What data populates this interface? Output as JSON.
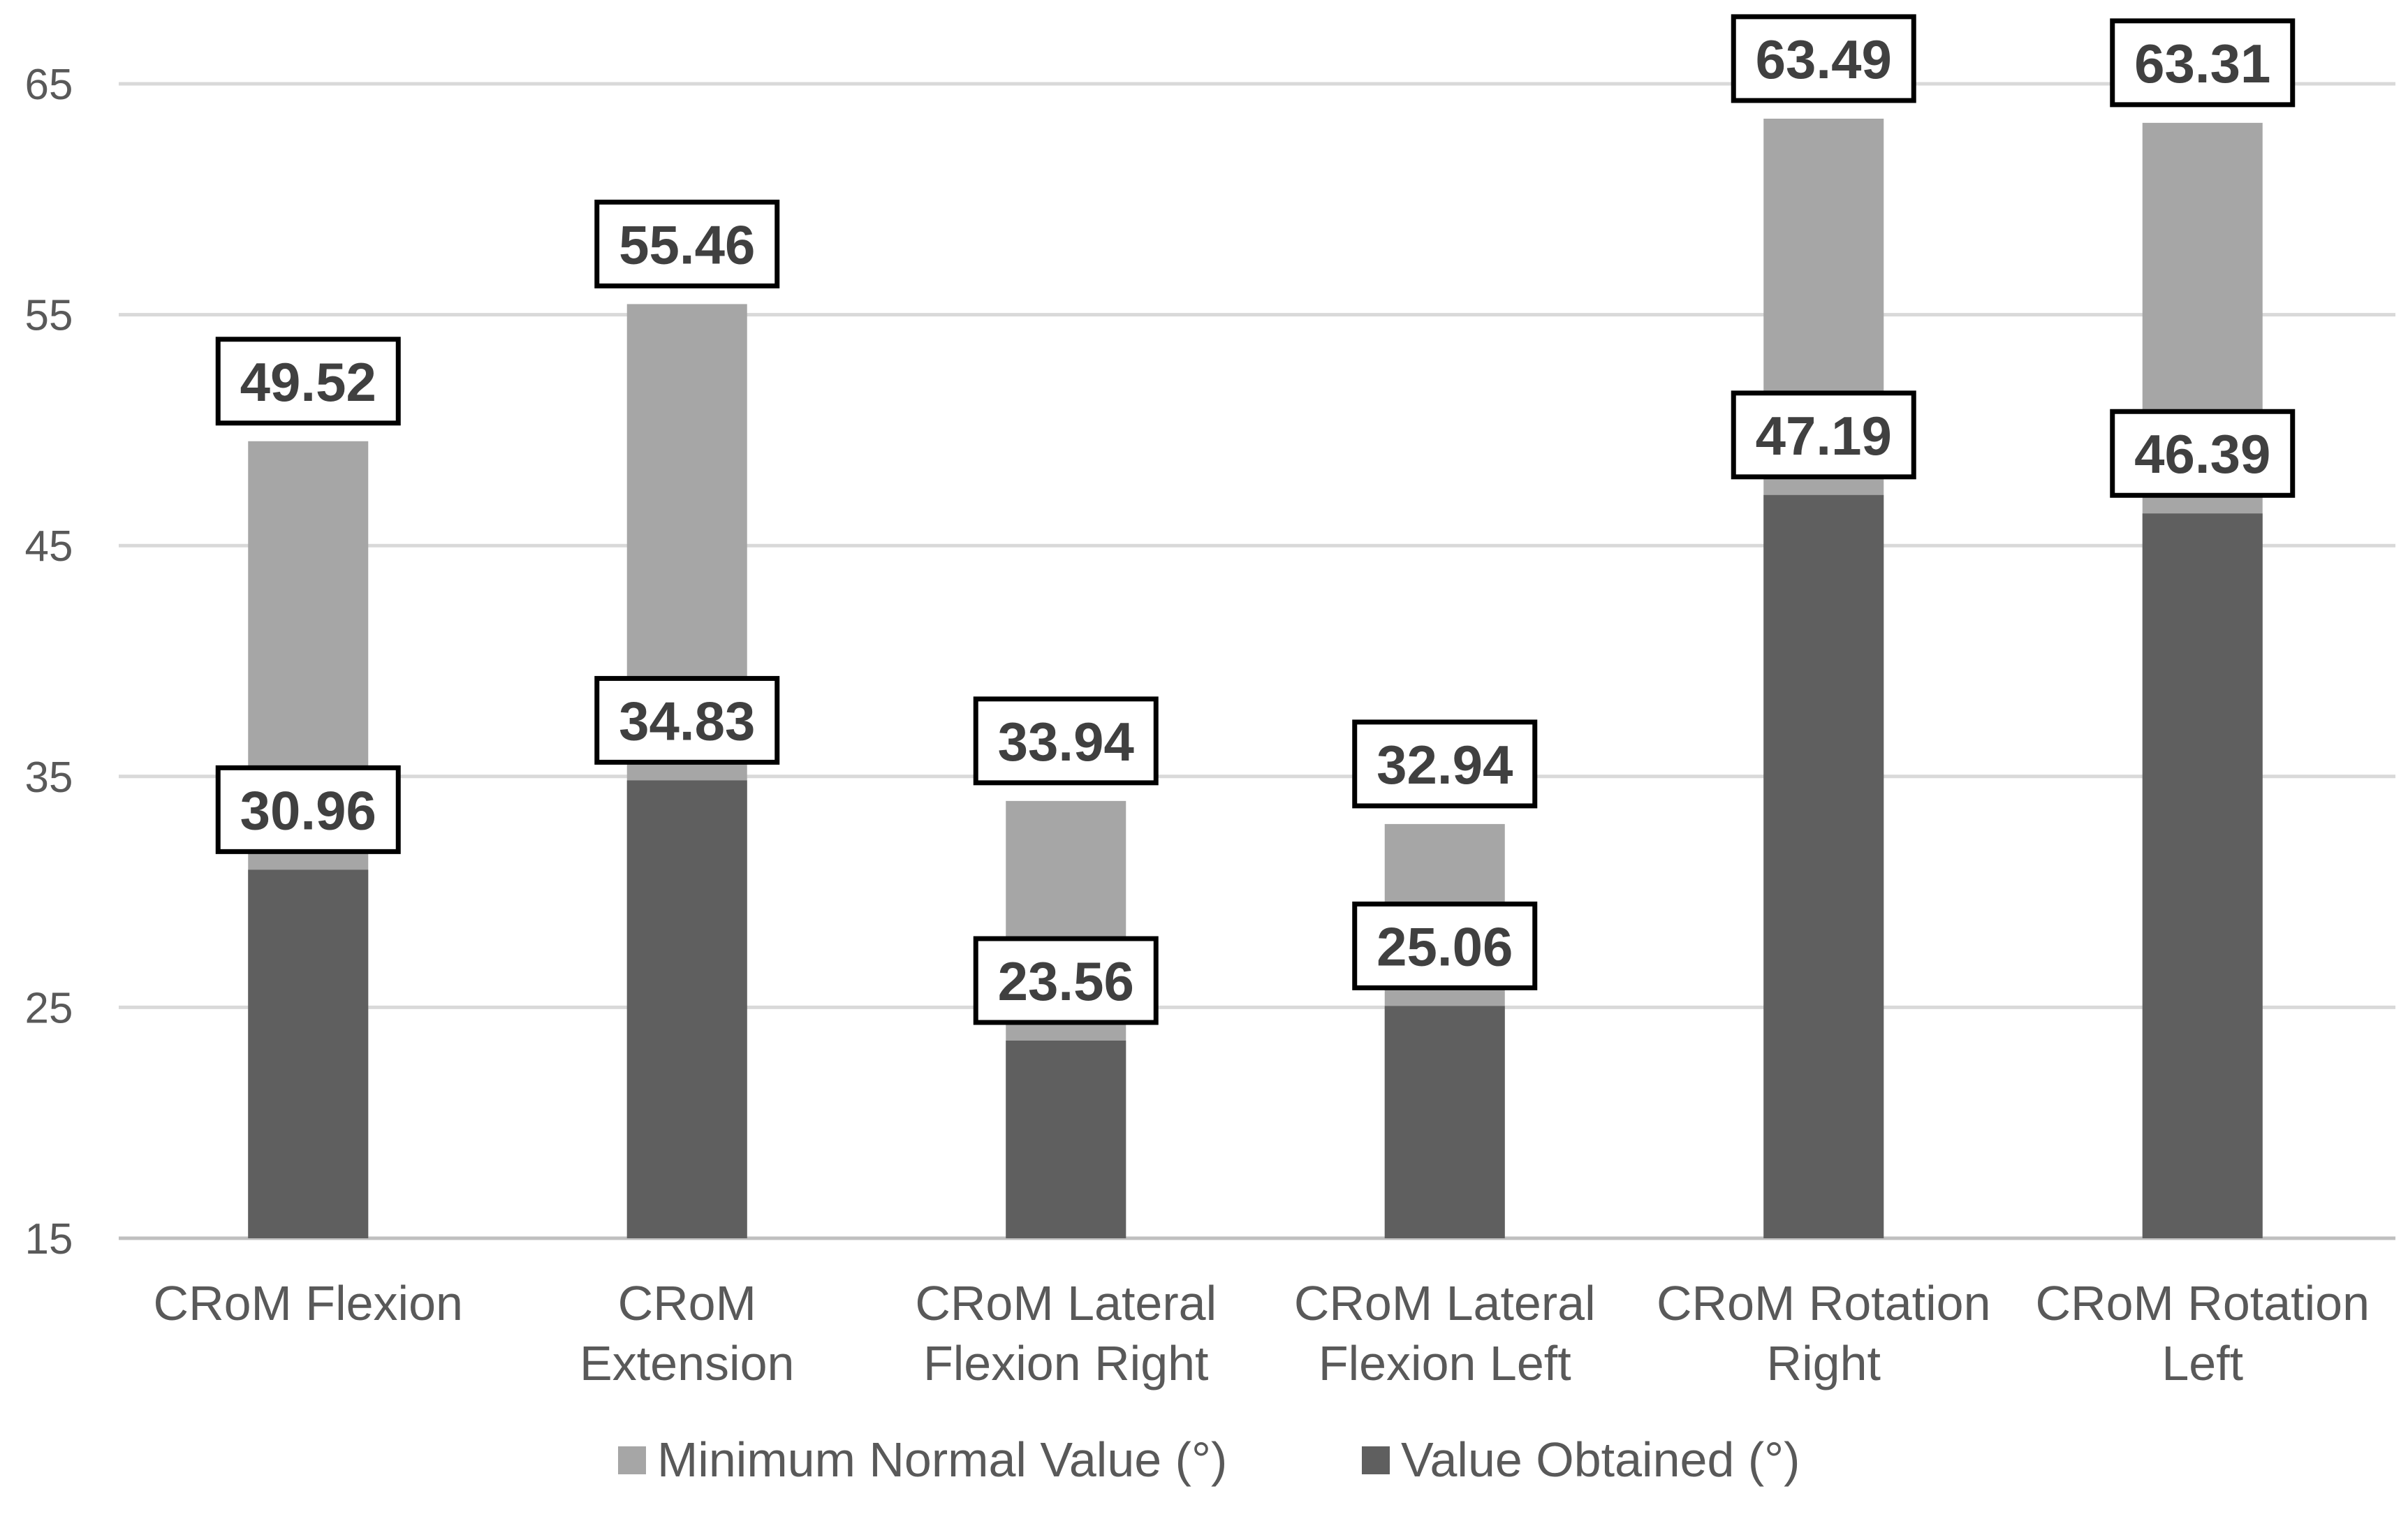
{
  "chart_data": {
    "type": "bar",
    "title": "",
    "xlabel": "",
    "ylabel": "",
    "ylim": [
      15,
      65
    ],
    "yticks": [
      15,
      25,
      35,
      45,
      55,
      65
    ],
    "grid": true,
    "legend_position": "bottom",
    "categories": [
      [
        "CRoM Flexion"
      ],
      [
        "CRoM",
        "Extension"
      ],
      [
        "CRoM Lateral",
        "Flexion Right"
      ],
      [
        "CRoM Lateral",
        "Flexion Left"
      ],
      [
        "CRoM Rotation",
        "Right"
      ],
      [
        "CRoM Rotation",
        "Left"
      ]
    ],
    "series": [
      {
        "name": "Minimum Normal Value (°)",
        "color": "#a6a6a6",
        "values": [
          49.52,
          55.46,
          33.94,
          32.94,
          63.49,
          63.31
        ]
      },
      {
        "name": "Value Obtained (°)",
        "color": "#5f5f5f",
        "values": [
          30.96,
          34.83,
          23.56,
          25.06,
          47.19,
          46.39
        ]
      }
    ]
  }
}
